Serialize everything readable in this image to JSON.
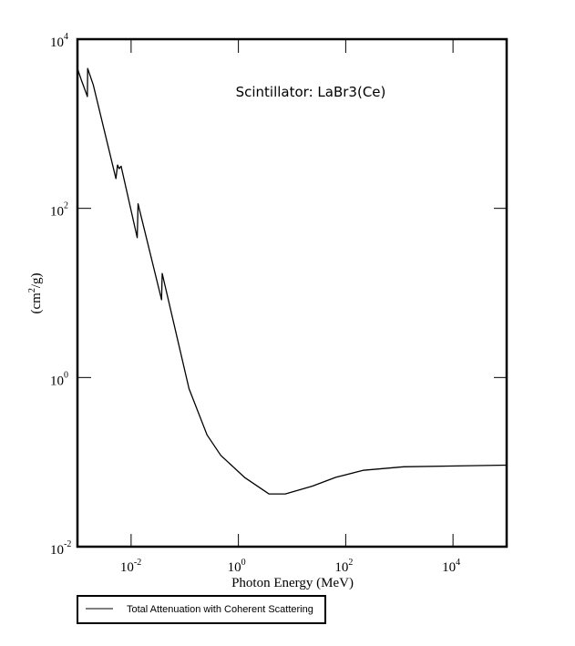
{
  "chart_data": {
    "type": "line",
    "title": "Scintillator: LaBr3(Ce)",
    "xlabel": "Photon Energy (MeV)",
    "ylabel": "(cm2/g)",
    "ylabel_base": "(cm",
    "ylabel_sup": "2",
    "ylabel_tail": "/g)",
    "x_scale": "log",
    "y_scale": "log",
    "xlim": [
      0.001,
      100000
    ],
    "ylim": [
      0.01,
      10000
    ],
    "grid": false,
    "legend_position": "bottom-left-outside",
    "x_ticks": [
      {
        "base": "10",
        "exp": "-2",
        "value": 0.01
      },
      {
        "base": "10",
        "exp": "0",
        "value": 1
      },
      {
        "base": "10",
        "exp": "2",
        "value": 100
      },
      {
        "base": "10",
        "exp": "4",
        "value": 10000
      }
    ],
    "y_ticks": [
      {
        "base": "10",
        "exp": "4",
        "value": 10000
      },
      {
        "base": "10",
        "exp": "2",
        "value": 100
      },
      {
        "base": "10",
        "exp": "0",
        "value": 1
      },
      {
        "base": "10",
        "exp": "-2",
        "value": 0.01
      }
    ],
    "series": [
      {
        "name": "Total Attenuation with Coherent Scattering",
        "color": "#000000",
        "x": [
          0.001,
          0.00117,
          0.00153,
          0.00155,
          0.00197,
          0.0052,
          0.0056,
          0.006,
          0.0065,
          0.013,
          0.0135,
          0.037,
          0.038,
          0.12,
          0.26,
          0.47,
          1.3,
          3.7,
          7.5,
          24,
          65,
          210,
          1200,
          100000
        ],
        "y": [
          4500,
          3350,
          2100,
          4500,
          2900,
          225,
          325,
          295,
          315,
          45,
          113,
          8.3,
          17,
          0.74,
          0.21,
          0.12,
          0.066,
          0.042,
          0.042,
          0.052,
          0.066,
          0.08,
          0.088,
          0.092
        ]
      }
    ]
  },
  "legend": {
    "items": [
      {
        "label": "Total Attenuation with Coherent Scattering",
        "color": "#000000"
      }
    ]
  }
}
